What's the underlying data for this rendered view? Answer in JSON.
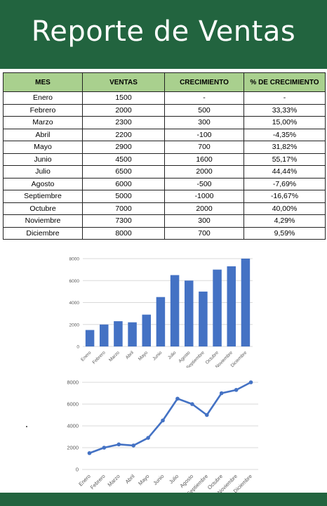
{
  "header": {
    "title": "Reporte de Ventas"
  },
  "table": {
    "columns": [
      "MES",
      "VENTAS",
      "CRECIMIENTO",
      "% DE CRECIMIENTO"
    ],
    "rows": [
      [
        "Enero",
        "1500",
        "-",
        "-"
      ],
      [
        "Febrero",
        "2000",
        "500",
        "33,33%"
      ],
      [
        "Marzo",
        "2300",
        "300",
        "15,00%"
      ],
      [
        "Abril",
        "2200",
        "-100",
        "-4,35%"
      ],
      [
        "Mayo",
        "2900",
        "700",
        "31,82%"
      ],
      [
        "Junio",
        "4500",
        "1600",
        "55,17%"
      ],
      [
        "Julio",
        "6500",
        "2000",
        "44,44%"
      ],
      [
        "Agosto",
        "6000",
        "-500",
        "-7,69%"
      ],
      [
        "Septiembre",
        "5000",
        "-1000",
        "-16,67%"
      ],
      [
        "Octubre",
        "7000",
        "2000",
        "40,00%"
      ],
      [
        "Noviembre",
        "7300",
        "300",
        "4,29%"
      ],
      [
        "Diciembre",
        "8000",
        "700",
        "9,59%"
      ]
    ]
  },
  "chart_data": [
    {
      "type": "bar",
      "categories": [
        "Enero",
        "Febrero",
        "Marzo",
        "Abril",
        "Mayo",
        "Junio",
        "Julio",
        "Agosto",
        "Septiembre",
        "Octubre",
        "Noviembre",
        "Diciembre"
      ],
      "values": [
        1500,
        2000,
        2300,
        2200,
        2900,
        4500,
        6500,
        6000,
        5000,
        7000,
        7300,
        8000
      ],
      "yticks": [
        "0",
        "2000",
        "4000",
        "6000",
        "8000"
      ],
      "ylim": [
        0,
        8000
      ],
      "grid": true,
      "color": "#4472c4"
    },
    {
      "type": "line",
      "categories": [
        "Enero",
        "Febrero",
        "Marzo",
        "Abril",
        "Mayo",
        "Junio",
        "Julio",
        "Agosto",
        "Septiembre",
        "Octubre",
        "Noviembre",
        "Diciembre"
      ],
      "values": [
        1500,
        2000,
        2300,
        2200,
        2900,
        4500,
        6500,
        6000,
        5000,
        7000,
        7300,
        8000
      ],
      "yticks": [
        "0",
        "2000",
        "4000",
        "6000",
        "8000"
      ],
      "ylim": [
        0,
        8000
      ],
      "grid": true,
      "color": "#4472c4"
    }
  ]
}
